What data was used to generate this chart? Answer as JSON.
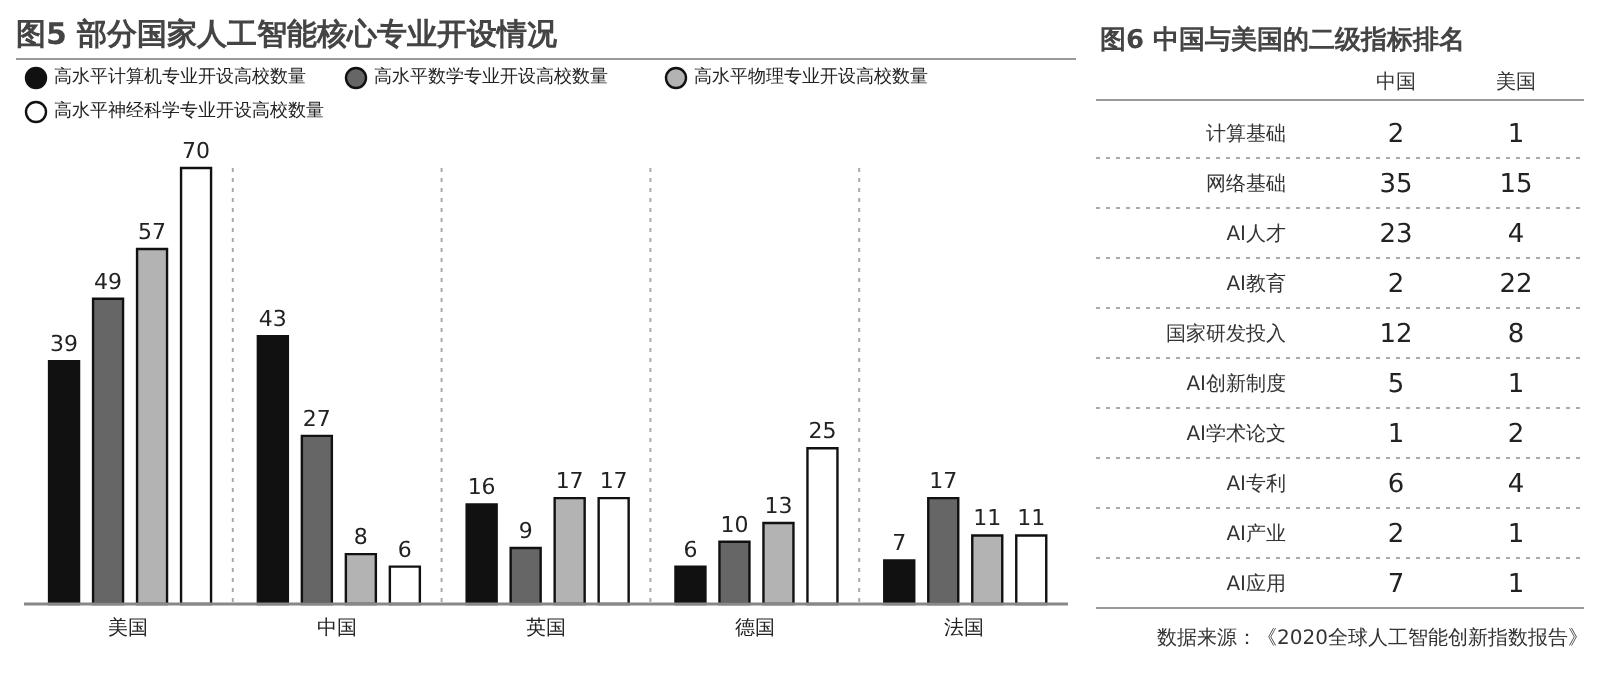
{
  "chart_data": [
    {
      "type": "bar",
      "title": "图5  部分国家人工智能核心专业开设情况",
      "categories": [
        "美国",
        "中国",
        "英国",
        "德国",
        "法国"
      ],
      "series": [
        {
          "name": "高水平计算机专业开设高校数量",
          "color": "#111111",
          "values": [
            39,
            43,
            16,
            6,
            7
          ]
        },
        {
          "name": "高水平数学专业开设高校数量",
          "color": "#666666",
          "values": [
            49,
            27,
            9,
            10,
            17
          ]
        },
        {
          "name": "高水平物理专业开设高校数量",
          "color": "#b3b3b3",
          "values": [
            57,
            8,
            17,
            13,
            11
          ]
        },
        {
          "name": "高水平神经科学专业开设高校数量",
          "color": "#ffffff",
          "values": [
            70,
            6,
            17,
            25,
            11
          ]
        }
      ],
      "data_labels": true,
      "legend": "top",
      "marker": "circle",
      "grid": "x"
    },
    {
      "type": "heatmap",
      "title": "图6  中国与美国的二级指标排名",
      "categories": [
        "中国",
        "美国"
      ],
      "y_categories": [
        "计算基础",
        "网络基础",
        "AI人才",
        "AI教育",
        "国家研发投入",
        "AI创新制度",
        "AI学术论文",
        "AI专利",
        "AI产业",
        "AI应用"
      ],
      "cells": [
        [
          2,
          1
        ],
        [
          35,
          15
        ],
        [
          23,
          4
        ],
        [
          2,
          22
        ],
        [
          12,
          8
        ],
        [
          5,
          1
        ],
        [
          1,
          2
        ],
        [
          6,
          4
        ],
        [
          2,
          1
        ],
        [
          7,
          1
        ]
      ],
      "data_labels": true,
      "grid": true,
      "annotations": [
        "数据来源：《2020全球人工智能创新指数报告》"
      ]
    }
  ]
}
